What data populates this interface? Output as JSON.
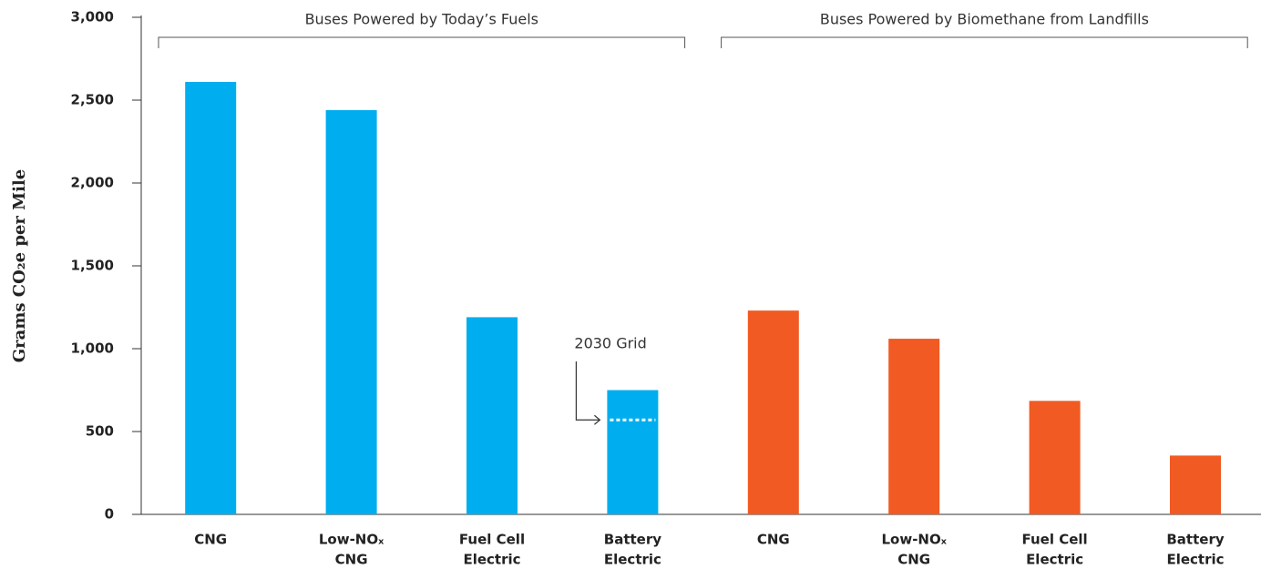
{
  "chart_data": {
    "type": "bar",
    "ylabel": "Grams CO₂e per Mile",
    "categories": [
      [
        "CNG"
      ],
      [
        "Low-NOₓ",
        "CNG"
      ],
      [
        "Fuel Cell",
        "Electric"
      ],
      [
        "Battery",
        "Electric"
      ],
      [
        "CNG"
      ],
      [
        "Low-NOₓ",
        "CNG"
      ],
      [
        "Fuel Cell",
        "Electric"
      ],
      [
        "Battery",
        "Electric"
      ]
    ],
    "series": [
      {
        "name": "Buses Powered by Today’s Fuels",
        "color": "#00aeef",
        "values": [
          2610,
          2440,
          1190,
          750,
          null,
          null,
          null,
          null
        ]
      },
      {
        "name": "Buses Powered by Biomethane from Landfills",
        "color": "#f15a22",
        "values": [
          null,
          null,
          null,
          null,
          1230,
          1060,
          685,
          355
        ]
      }
    ],
    "annotations": [
      {
        "text": "2030 Grid",
        "value": 570
      }
    ],
    "ylim": [
      0,
      3000
    ],
    "yticks": [
      0,
      500,
      {
        "value": 1000,
        "label": "1,000"
      },
      {
        "value": 1500,
        "label": "1,500"
      },
      {
        "value": 2000,
        "label": "2,000"
      },
      {
        "value": 2500,
        "label": "2,500"
      },
      {
        "value": 3000,
        "label": "3,000"
      }
    ],
    "grid": false
  }
}
